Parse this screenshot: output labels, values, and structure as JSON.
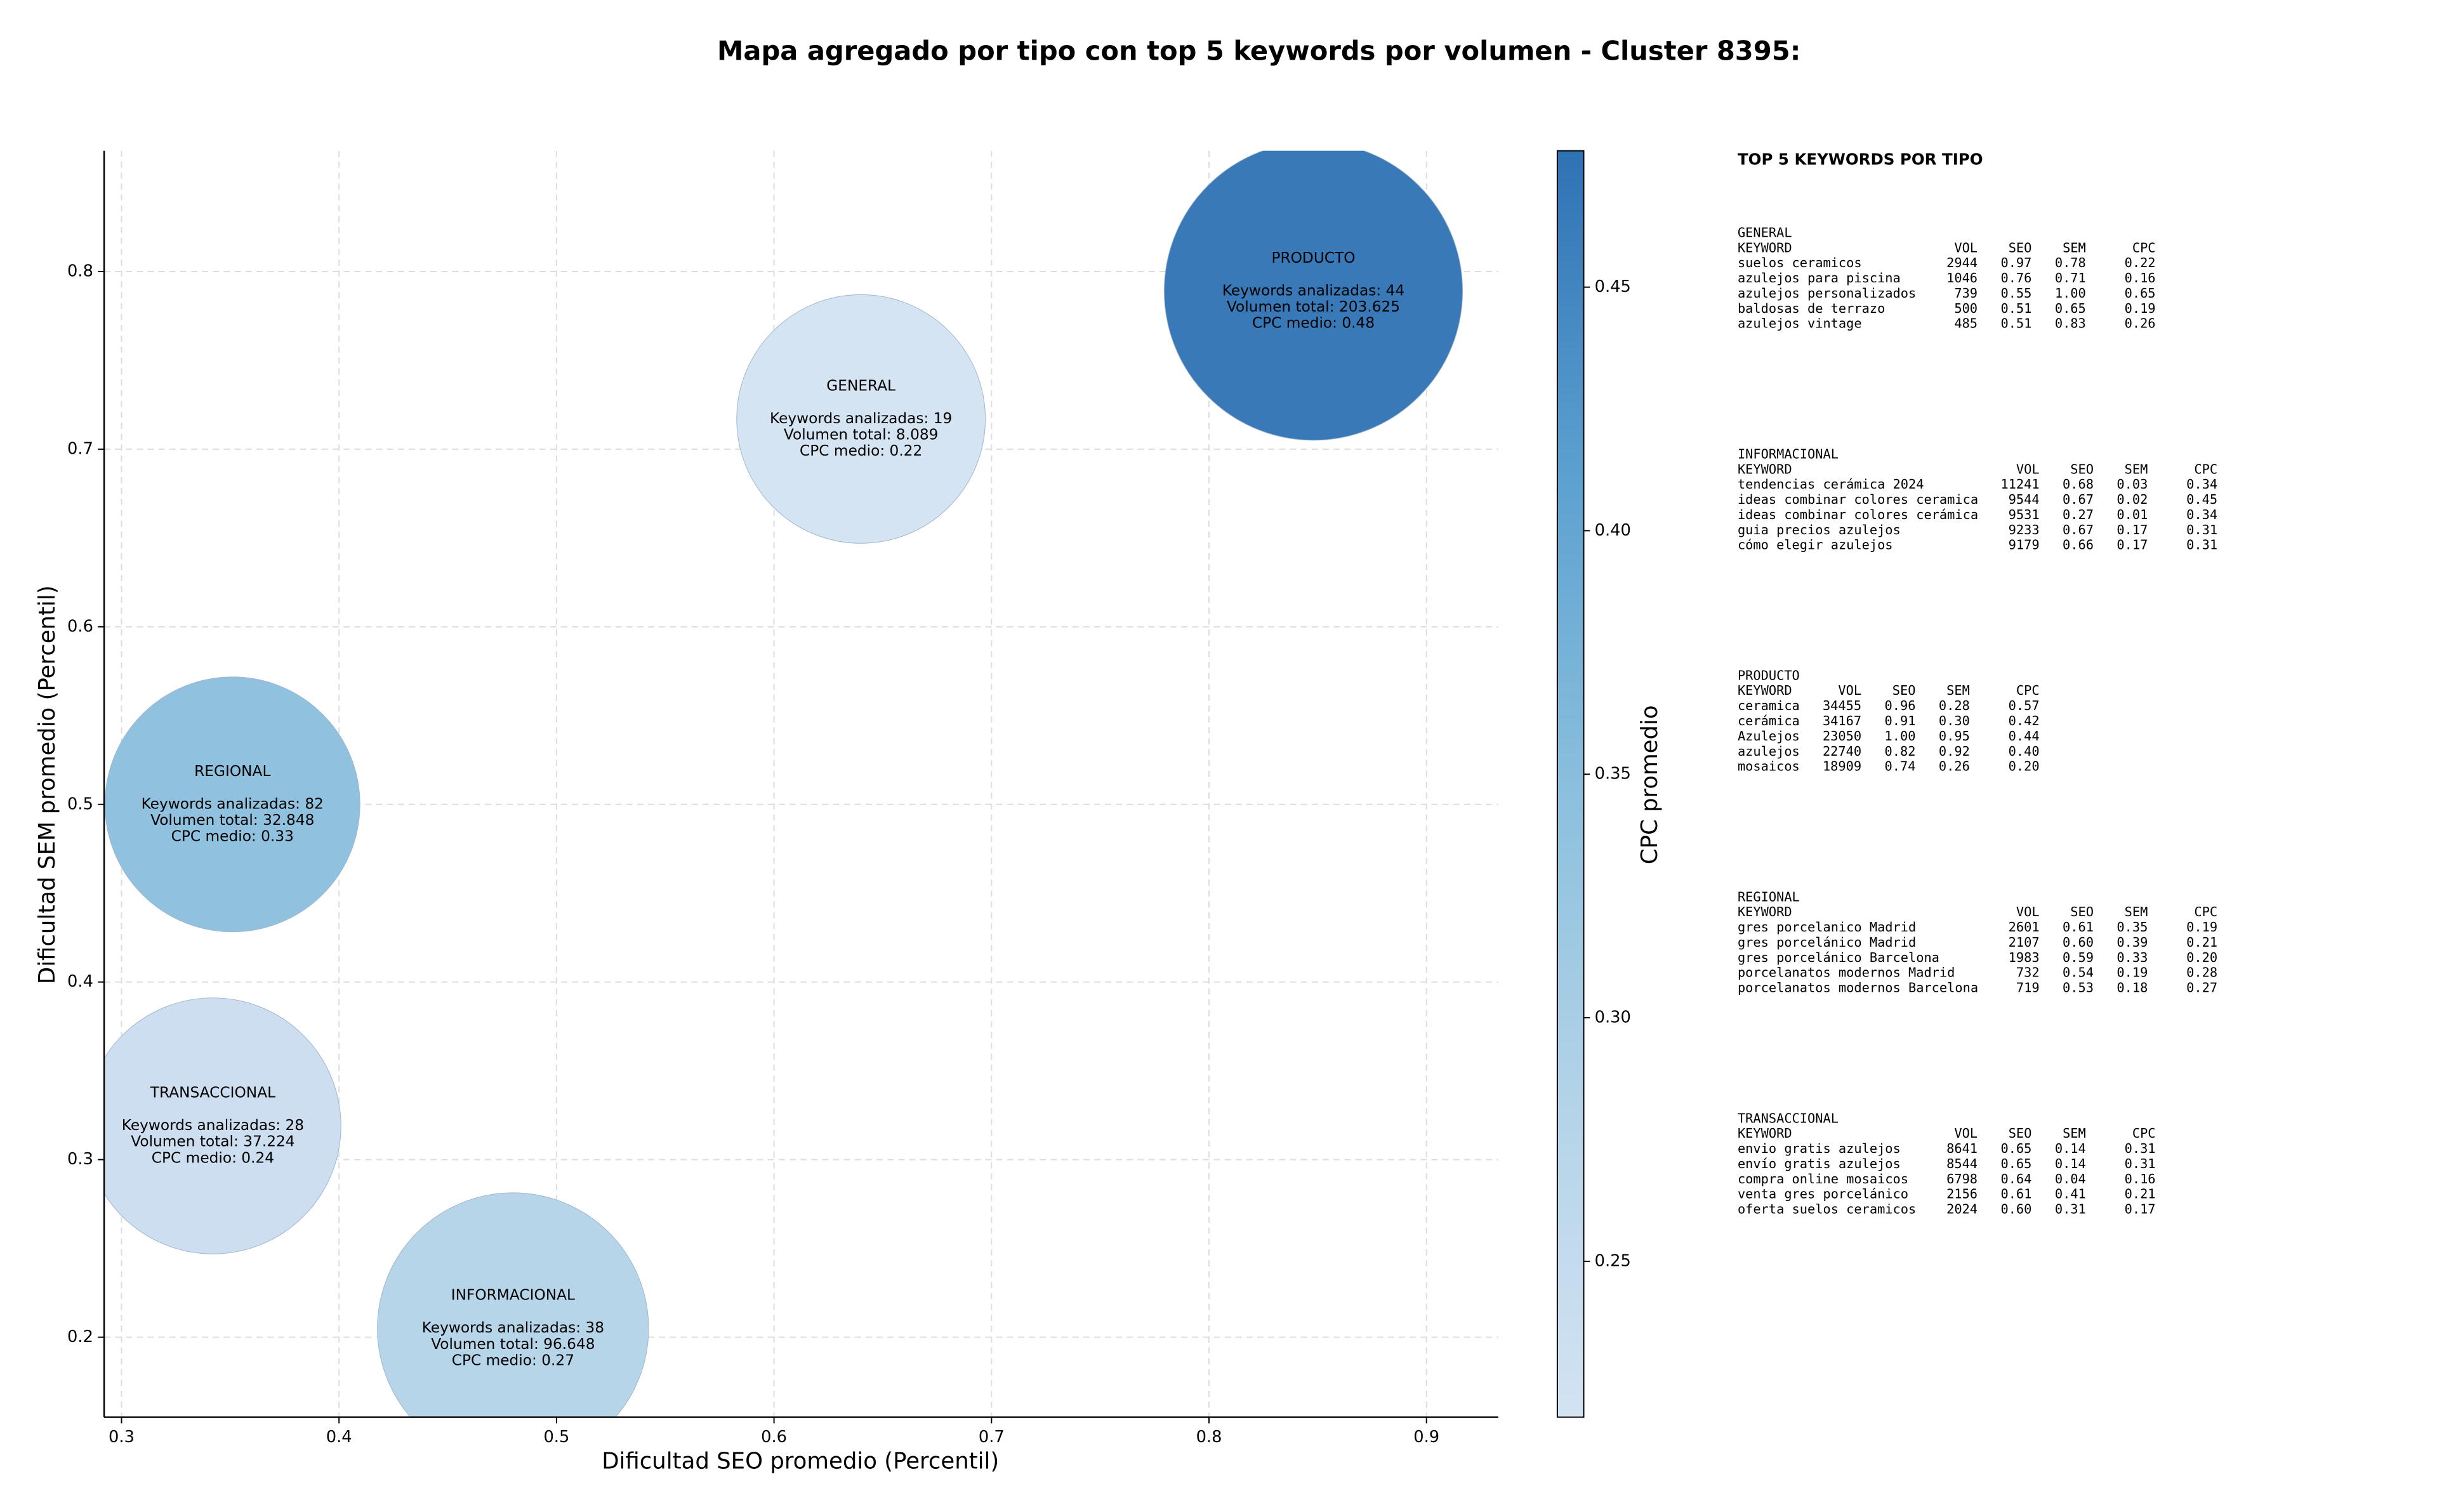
{
  "chart_data": {
    "type": "bubble",
    "title": "Mapa agregado por tipo con top 5 keywords por volumen - Cluster 8395:",
    "xlabel": "Dificultad SEO promedio (Percentil)",
    "ylabel": "Dificultad SEM promedio (Percentil)",
    "xlim": [
      0.292,
      0.933
    ],
    "ylim": [
      0.155,
      0.868
    ],
    "xticks": [
      0.3,
      0.4,
      0.5,
      0.6,
      0.7,
      0.8,
      0.9
    ],
    "yticks": [
      0.2,
      0.3,
      0.4,
      0.5,
      0.6,
      0.7,
      0.8
    ],
    "grid": true,
    "colorbar": {
      "label": "CPC promedio",
      "lim": [
        0.218,
        0.478
      ],
      "ticks": [
        0.25,
        {
          "value": 0.3,
          "label": "0.30"
        },
        0.35,
        {
          "value": 0.4,
          "label": "0.40"
        },
        0.45
      ],
      "colors": [
        "#d3e3f2",
        "#b3d3e8",
        "#8abfdd",
        "#5aa0cf",
        "#2e72b4"
      ]
    },
    "points": [
      {
        "name": "PRODUCTO",
        "x": 0.848,
        "y": 0.789,
        "volume": 203625,
        "color": "#2e72b4",
        "annotations": [
          "Keywords analizadas: 44",
          "Volumen total: 203.625",
          "CPC medio: 0.48"
        ]
      },
      {
        "name": "GENERAL",
        "x": 0.64,
        "y": 0.717,
        "volume": 8089,
        "color": "#d3e3f2",
        "annotations": [
          "Keywords analizadas: 19",
          "Volumen total: 8.089",
          "CPC medio: 0.22"
        ]
      },
      {
        "name": "REGIONAL",
        "x": 0.351,
        "y": 0.5,
        "volume": 32848,
        "color": "#8abfdd",
        "annotations": [
          "Keywords analizadas: 82",
          "Volumen total: 32.848",
          "CPC medio: 0.33"
        ]
      },
      {
        "name": "TRANSACCIONAL",
        "x": 0.342,
        "y": 0.319,
        "volume": 37224,
        "color": "#c9dcee",
        "annotations": [
          "Keywords analizadas: 28",
          "Volumen total: 37.224",
          "CPC medio: 0.24"
        ]
      },
      {
        "name": "INFORMACIONAL",
        "x": 0.48,
        "y": 0.205,
        "volume": 96648,
        "color": "#b3d3e8",
        "annotations": [
          "Keywords analizadas: 38",
          "Volumen total: 96.648",
          "CPC medio: 0.27"
        ]
      }
    ]
  },
  "panel": {
    "title": "TOP 5 KEYWORDS POR TIPO",
    "sections": [
      {
        "name": "GENERAL",
        "header": [
          "KEYWORD",
          "VOL",
          "SEO",
          "SEM",
          "CPC"
        ],
        "rows": [
          [
            "suelos ceramicos",
            "2944",
            "0.97",
            "0.78",
            "0.22"
          ],
          [
            "azulejos para piscina",
            "1046",
            "0.76",
            "0.71",
            "0.16"
          ],
          [
            "azulejos personalizados",
            "739",
            "0.55",
            "1.00",
            "0.65"
          ],
          [
            "baldosas de terrazo",
            "500",
            "0.51",
            "0.65",
            "0.19"
          ],
          [
            "azulejos vintage",
            "485",
            "0.51",
            "0.83",
            "0.26"
          ]
        ]
      },
      {
        "name": "INFORMACIONAL",
        "header": [
          "KEYWORD",
          "VOL",
          "SEO",
          "SEM",
          "CPC"
        ],
        "rows": [
          [
            "tendencias cerámica 2024",
            "11241",
            "0.68",
            "0.03",
            "0.34"
          ],
          [
            "ideas combinar colores ceramica",
            "9544",
            "0.67",
            "0.02",
            "0.45"
          ],
          [
            "ideas combinar colores cerámica",
            "9531",
            "0.27",
            "0.01",
            "0.34"
          ],
          [
            "guia precios azulejos",
            "9233",
            "0.67",
            "0.17",
            "0.31"
          ],
          [
            "cómo elegir azulejos",
            "9179",
            "0.66",
            "0.17",
            "0.31"
          ]
        ]
      },
      {
        "name": "PRODUCTO",
        "header": [
          "KEYWORD",
          "VOL",
          "SEO",
          "SEM",
          "CPC"
        ],
        "rows": [
          [
            "ceramica",
            "34455",
            "0.96",
            "0.28",
            "0.57"
          ],
          [
            "cerámica",
            "34167",
            "0.91",
            "0.30",
            "0.42"
          ],
          [
            "Azulejos",
            "23050",
            "1.00",
            "0.95",
            "0.44"
          ],
          [
            "azulejos",
            "22740",
            "0.82",
            "0.92",
            "0.40"
          ],
          [
            "mosaicos",
            "18909",
            "0.74",
            "0.26",
            "0.20"
          ]
        ]
      },
      {
        "name": "REGIONAL",
        "header": [
          "KEYWORD",
          "VOL",
          "SEO",
          "SEM",
          "CPC"
        ],
        "rows": [
          [
            "gres porcelanico Madrid",
            "2601",
            "0.61",
            "0.35",
            "0.19"
          ],
          [
            "gres porcelánico Madrid",
            "2107",
            "0.60",
            "0.39",
            "0.21"
          ],
          [
            "gres porcelánico Barcelona",
            "1983",
            "0.59",
            "0.33",
            "0.20"
          ],
          [
            "porcelanatos modernos Madrid",
            "732",
            "0.54",
            "0.19",
            "0.28"
          ],
          [
            "porcelanatos modernos Barcelona",
            "719",
            "0.53",
            "0.18",
            "0.27"
          ]
        ]
      },
      {
        "name": "TRANSACCIONAL",
        "header": [
          "KEYWORD",
          "VOL",
          "SEO",
          "SEM",
          "CPC"
        ],
        "rows": [
          [
            "envio gratis azulejos",
            "8641",
            "0.65",
            "0.14",
            "0.31"
          ],
          [
            "envío gratis azulejos",
            "8544",
            "0.65",
            "0.14",
            "0.31"
          ],
          [
            "compra online mosaicos",
            "6798",
            "0.64",
            "0.04",
            "0.16"
          ],
          [
            "venta gres porcelánico",
            "2156",
            "0.61",
            "0.41",
            "0.21"
          ],
          [
            "oferta suelos ceramicos",
            "2024",
            "0.60",
            "0.31",
            "0.17"
          ]
        ]
      }
    ]
  }
}
